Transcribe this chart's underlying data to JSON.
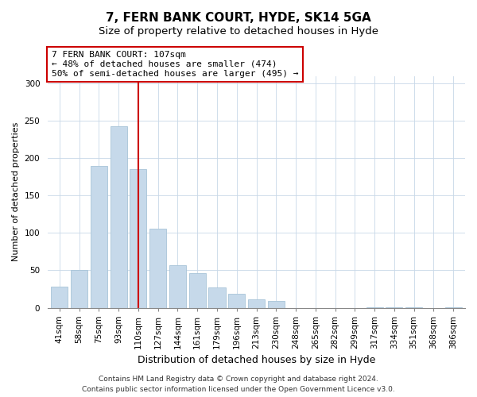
{
  "title": "7, FERN BANK COURT, HYDE, SK14 5GA",
  "subtitle": "Size of property relative to detached houses in Hyde",
  "xlabel": "Distribution of detached houses by size in Hyde",
  "ylabel": "Number of detached properties",
  "categories": [
    "41sqm",
    "58sqm",
    "75sqm",
    "93sqm",
    "110sqm",
    "127sqm",
    "144sqm",
    "161sqm",
    "179sqm",
    "196sqm",
    "213sqm",
    "230sqm",
    "248sqm",
    "265sqm",
    "282sqm",
    "299sqm",
    "317sqm",
    "334sqm",
    "351sqm",
    "368sqm",
    "386sqm"
  ],
  "values": [
    28,
    50,
    190,
    243,
    185,
    106,
    57,
    46,
    27,
    19,
    11,
    9,
    0,
    0,
    0,
    0,
    1,
    1,
    1,
    0,
    1
  ],
  "bar_color": "#c6d9ea",
  "bar_edge_color": "#a8c4d8",
  "vline_x_index": 4,
  "vline_color": "#cc0000",
  "annotation_text": "7 FERN BANK COURT: 107sqm\n← 48% of detached houses are smaller (474)\n50% of semi-detached houses are larger (495) →",
  "annotation_box_color": "#ffffff",
  "annotation_box_edge": "#cc0000",
  "ylim": [
    0,
    310
  ],
  "yticks": [
    0,
    50,
    100,
    150,
    200,
    250,
    300
  ],
  "footer": "Contains HM Land Registry data © Crown copyright and database right 2024.\nContains public sector information licensed under the Open Government Licence v3.0.",
  "title_fontsize": 11,
  "subtitle_fontsize": 9.5,
  "xlabel_fontsize": 9,
  "ylabel_fontsize": 8,
  "tick_fontsize": 7.5,
  "annotation_fontsize": 8,
  "footer_fontsize": 6.5,
  "bg_color": "#f5f5f5"
}
